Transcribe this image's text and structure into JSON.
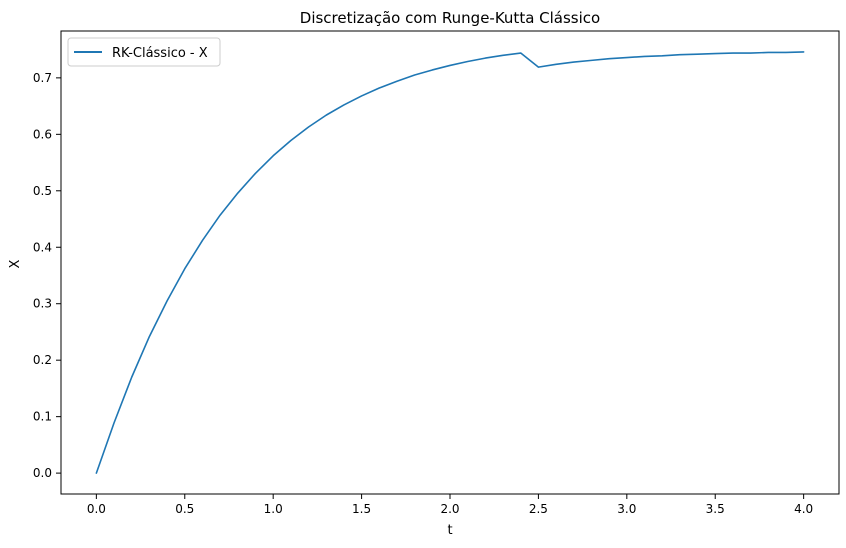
{
  "chart_data": {
    "type": "line",
    "title": "Discretização com Runge-Kutta Clássico",
    "xlabel": "t",
    "ylabel": "X",
    "xlim": [
      -0.2,
      4.2
    ],
    "ylim": [
      -0.037,
      0.783
    ],
    "xticks": [
      0.0,
      0.5,
      1.0,
      1.5,
      2.0,
      2.5,
      3.0,
      3.5,
      4.0
    ],
    "xtick_labels": [
      "0.0",
      "0.5",
      "1.0",
      "1.5",
      "2.0",
      "2.5",
      "3.0",
      "3.5",
      "4.0"
    ],
    "yticks": [
      0.0,
      0.1,
      0.2,
      0.3,
      0.4,
      0.5,
      0.6,
      0.7
    ],
    "ytick_labels": [
      "0.0",
      "0.1",
      "0.2",
      "0.3",
      "0.4",
      "0.5",
      "0.6",
      "0.7"
    ],
    "grid": false,
    "legend_position": "top-left",
    "series": [
      {
        "name": "RK-Clássico - X",
        "color": "#1f77b4",
        "x": [
          0.0,
          0.1,
          0.2,
          0.3,
          0.4,
          0.5,
          0.6,
          0.7,
          0.8,
          0.9,
          1.0,
          1.1,
          1.2,
          1.3,
          1.4,
          1.5,
          1.6,
          1.7,
          1.8,
          1.9,
          2.0,
          2.1,
          2.2,
          2.3,
          2.4,
          2.5,
          2.6,
          2.7,
          2.8,
          2.9,
          3.0,
          3.1,
          3.2,
          3.3,
          3.4,
          3.5,
          3.6,
          3.7,
          3.8,
          3.9,
          4.0
        ],
        "y": [
          0.0,
          0.089,
          0.17,
          0.242,
          0.305,
          0.362,
          0.412,
          0.457,
          0.496,
          0.531,
          0.562,
          0.589,
          0.613,
          0.634,
          0.652,
          0.668,
          0.682,
          0.694,
          0.705,
          0.714,
          0.722,
          0.729,
          0.735,
          0.74,
          0.744,
          0.719,
          0.724,
          0.728,
          0.731,
          0.734,
          0.736,
          0.738,
          0.739,
          0.741,
          0.742,
          0.743,
          0.744,
          0.744,
          0.745,
          0.745,
          0.746
        ]
      }
    ]
  }
}
